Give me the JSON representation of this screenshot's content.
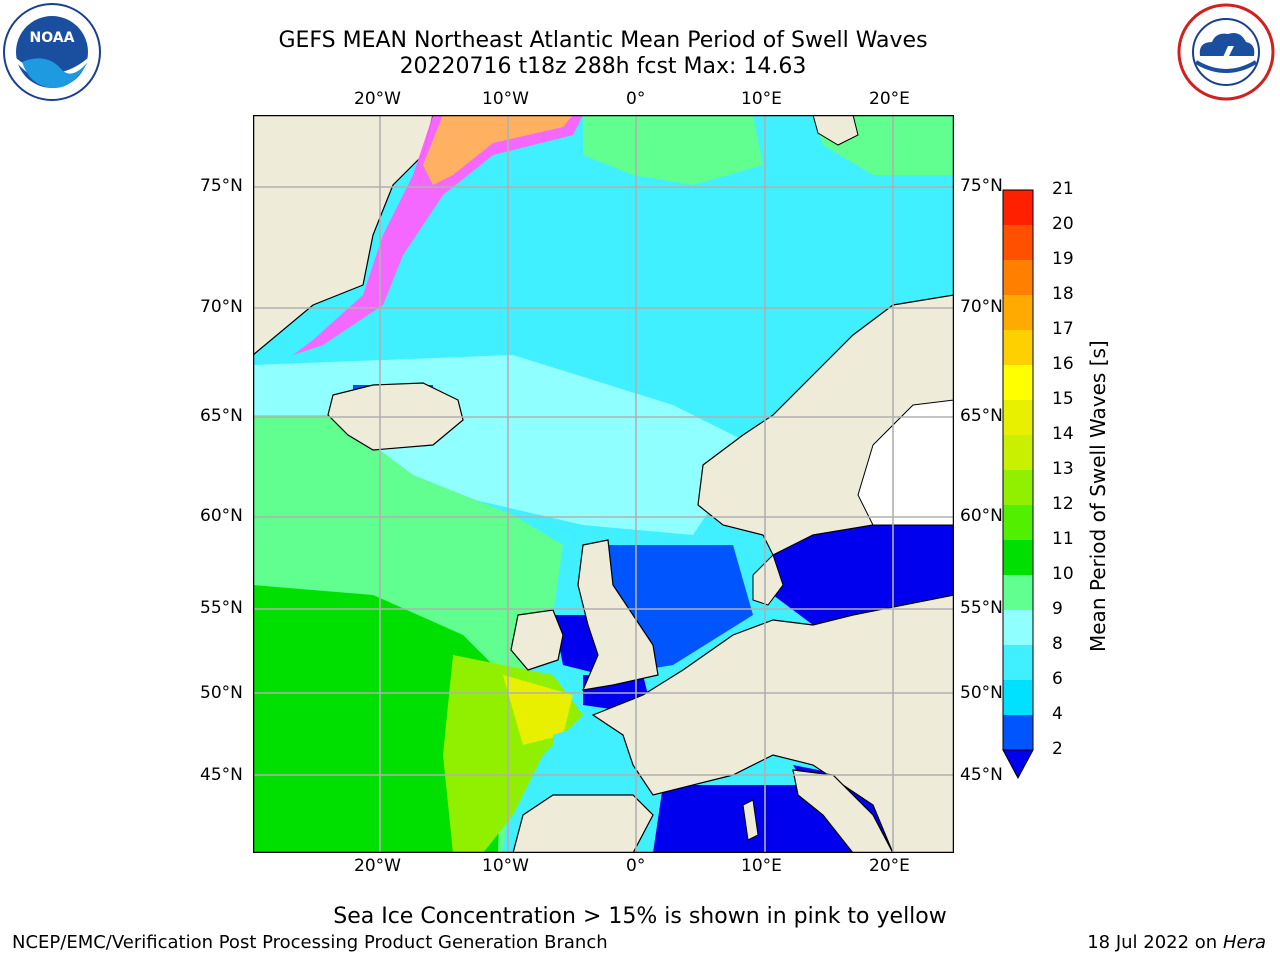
{
  "title": {
    "line1": "GEFS MEAN Northeast Atlantic Mean Period of Swell Waves",
    "line2": "20220716 t18z 288h fcst   Max: 14.63"
  },
  "logos": {
    "left": {
      "icon": "noaa-logo-icon",
      "text": "NOAA",
      "ring": "NATIONAL OCEANIC AND ATMOSPHERIC ADMINISTRATION · U.S. DEPARTMENT OF COMMERCE"
    },
    "right": {
      "icon": "nws-logo-icon",
      "ring": "NATIONAL WEATHER SERVICE"
    }
  },
  "axes": {
    "lon_top": [
      "20°W",
      "10°W",
      "0°",
      "10°E",
      "20°E"
    ],
    "lon_bottom": [
      "20°W",
      "10°W",
      "0°",
      "10°E",
      "20°E"
    ],
    "lat_left": [
      "75°N",
      "70°N",
      "65°N",
      "60°N",
      "55°N",
      "50°N",
      "45°N"
    ],
    "lat_right": [
      "75°N",
      "70°N",
      "65°N",
      "60°N",
      "55°N",
      "50°N",
      "45°N"
    ]
  },
  "colorbar": {
    "title": "Mean Period of Swell Waves [s]",
    "ticks": [
      "2",
      "4",
      "6",
      "8",
      "9",
      "10",
      "11",
      "12",
      "13",
      "14",
      "15",
      "16",
      "17",
      "18",
      "19",
      "20",
      "21"
    ],
    "colors": [
      "#0055ff",
      "#00e0ff",
      "#40f0ff",
      "#90ffff",
      "#60ff90",
      "#00e000",
      "#50f000",
      "#90f000",
      "#c8f000",
      "#e8f000",
      "#ffff00",
      "#ffd000",
      "#ffaa00",
      "#ff8000",
      "#ff5000",
      "#ff2000"
    ],
    "extend_color": "#0000ee"
  },
  "colors": {
    "land": "#eeebd9",
    "ice_pink": "#ff60ff",
    "ice_orange": "#ffb060",
    "deep_blue": "#0000ee",
    "grid": "#b0b0b0"
  },
  "subtitle": "Sea Ice Concentration > 15% is shown in pink to yellow",
  "footer": {
    "left": "NCEP/EMC/Verification Post Processing Product Generation Branch",
    "right_date": "18 Jul 2022 on ",
    "right_machine": "Hera"
  }
}
